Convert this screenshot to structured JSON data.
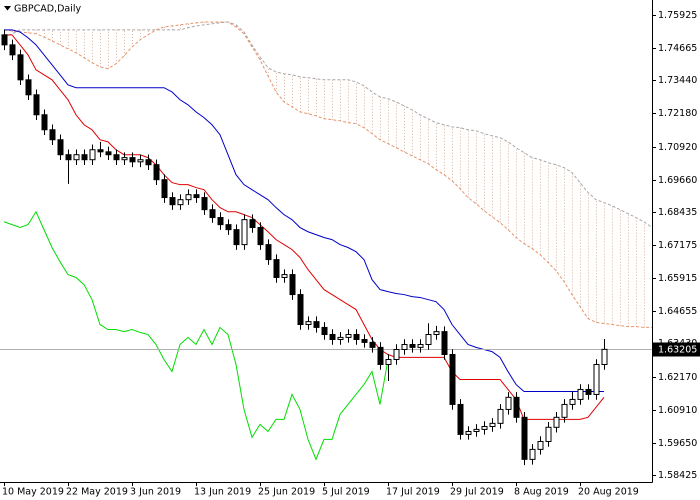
{
  "chart_data": {
    "type": "candlestick",
    "title": "GBPCAD,Daily",
    "categories": [
      "10 May 2019",
      null,
      null,
      null,
      null,
      null,
      null,
      null,
      "22 May 2019",
      null,
      null,
      null,
      null,
      null,
      null,
      null,
      "3 Jun 2019",
      null,
      null,
      null,
      null,
      null,
      null,
      null,
      "13 Jun 2019",
      null,
      null,
      null,
      null,
      null,
      null,
      null,
      "25 Jun 2019",
      null,
      null,
      null,
      null,
      null,
      null,
      null,
      "5 Jul 2019",
      null,
      null,
      null,
      null,
      null,
      null,
      null,
      "17 Jul 2019",
      null,
      null,
      null,
      null,
      null,
      null,
      null,
      "29 Jul 2019",
      null,
      null,
      null,
      null,
      null,
      null,
      null,
      "8 Aug 2019",
      null,
      null,
      null,
      null,
      null,
      null,
      null,
      "20 Aug 2019",
      null,
      null,
      null,
      null,
      null,
      null,
      null,
      null,
      null
    ],
    "open": [
      1.7517,
      1.7479,
      1.7441,
      1.7346,
      1.7289,
      1.7213,
      1.7156,
      1.7118,
      1.7061,
      1.7042,
      1.7061,
      1.7042,
      1.708,
      1.7072,
      1.7061,
      1.7042,
      1.705,
      1.7034,
      1.7042,
      1.7023,
      1.6966,
      1.6898,
      1.6871,
      1.689,
      1.6909,
      1.6898,
      1.6852,
      1.6822,
      1.6795,
      1.6776,
      1.6719,
      1.6814,
      1.6784,
      1.6719,
      1.6662,
      1.6594,
      1.6605,
      1.6529,
      1.6415,
      1.6426,
      1.6404,
      1.6377,
      1.6358,
      1.6366,
      1.6377,
      1.6358,
      1.6347,
      1.6328,
      1.6263,
      1.6282,
      1.632,
      1.6339,
      1.6328,
      1.6339,
      1.6377,
      1.6388,
      1.6301,
      1.6111,
      1.5997,
      1.6008,
      1.6016,
      1.6027,
      1.6039,
      1.6092,
      1.6138,
      1.6062,
      1.5902,
      1.594,
      1.597,
      1.6024,
      1.6062,
      1.6111,
      1.613,
      1.6168,
      1.6149,
      1.6263,
      null,
      null,
      null,
      null,
      null,
      null
    ],
    "high": [
      1.7537,
      1.7499,
      1.7461,
      1.7366,
      1.7309,
      1.7233,
      1.7176,
      1.7138,
      1.7081,
      1.7081,
      1.7081,
      1.71,
      1.711,
      1.7092,
      1.7081,
      1.707,
      1.707,
      1.7062,
      1.7062,
      1.7043,
      1.6986,
      1.6918,
      1.691,
      1.6929,
      1.6929,
      1.6918,
      1.6872,
      1.6842,
      1.6815,
      1.6796,
      1.6834,
      1.6834,
      1.6804,
      1.6739,
      1.6682,
      1.6625,
      1.6625,
      1.6549,
      1.6446,
      1.6446,
      1.6424,
      1.6397,
      1.6386,
      1.6397,
      1.6397,
      1.6378,
      1.6367,
      1.6348,
      1.6302,
      1.634,
      1.6359,
      1.6359,
      1.6359,
      1.642,
      1.641,
      1.6408,
      1.6321,
      1.6131,
      1.6028,
      1.6036,
      1.6047,
      1.6059,
      1.6112,
      1.6158,
      1.6158,
      1.6082,
      1.596,
      1.599,
      1.6044,
      1.6082,
      1.6131,
      1.616,
      1.6188,
      1.6188,
      1.6283,
      1.636,
      null,
      null,
      null,
      null,
      null,
      null
    ],
    "low": [
      1.7459,
      1.7421,
      1.7326,
      1.7269,
      1.7193,
      1.7136,
      1.7098,
      1.7041,
      1.695,
      1.7022,
      1.7022,
      1.7022,
      1.7052,
      1.7041,
      1.7022,
      1.7022,
      1.7014,
      1.7014,
      1.7003,
      1.6946,
      1.6878,
      1.6851,
      1.6851,
      1.687,
      1.6878,
      1.6832,
      1.6802,
      1.6775,
      1.6756,
      1.6699,
      1.6699,
      1.6764,
      1.6699,
      1.6642,
      1.6574,
      1.6574,
      1.6509,
      1.6395,
      1.6395,
      1.6384,
      1.6357,
      1.6338,
      1.6338,
      1.6346,
      1.6338,
      1.6327,
      1.6308,
      1.6243,
      1.62,
      1.6262,
      1.63,
      1.6308,
      1.6308,
      1.6319,
      1.6357,
      1.6281,
      1.6091,
      1.5977,
      1.5977,
      1.5988,
      1.5996,
      1.6007,
      1.6019,
      1.6072,
      1.6042,
      1.588,
      1.5882,
      1.592,
      1.595,
      1.6004,
      1.6042,
      1.6091,
      1.611,
      1.6129,
      1.6129,
      1.6243,
      null,
      null,
      null,
      null,
      null,
      null
    ],
    "close": [
      1.7479,
      1.7441,
      1.7346,
      1.7289,
      1.7213,
      1.7156,
      1.7118,
      1.7061,
      1.7042,
      1.7061,
      1.7042,
      1.708,
      1.7072,
      1.7061,
      1.7042,
      1.705,
      1.7034,
      1.7042,
      1.7023,
      1.6966,
      1.6898,
      1.6871,
      1.689,
      1.6909,
      1.6898,
      1.6852,
      1.6822,
      1.6795,
      1.6776,
      1.6719,
      1.6814,
      1.6784,
      1.6719,
      1.6662,
      1.6594,
      1.6605,
      1.6529,
      1.6415,
      1.6426,
      1.6404,
      1.6377,
      1.6358,
      1.6366,
      1.6377,
      1.6358,
      1.6347,
      1.6328,
      1.6263,
      1.6282,
      1.632,
      1.6339,
      1.6328,
      1.6339,
      1.6377,
      1.6388,
      1.6301,
      1.6111,
      1.5997,
      1.6008,
      1.6016,
      1.6027,
      1.6039,
      1.6092,
      1.6138,
      1.6062,
      1.5902,
      1.594,
      1.597,
      1.6024,
      1.6062,
      1.6111,
      1.613,
      1.6168,
      1.6149,
      1.6263,
      1.63205,
      null,
      null,
      null,
      null,
      null,
      null
    ],
    "candle_colors": {
      "up": "#ffffff",
      "down": "#000000",
      "outline": "#000000"
    },
    "cloud_color": "#d9b09a",
    "span_a": {
      "color": "#e8956a",
      "dashed": true,
      "values": [
        1.7536,
        1.7532,
        1.7528,
        1.7525,
        1.7521,
        1.7509,
        1.7494,
        1.7479,
        1.7464,
        1.7449,
        1.743,
        1.7411,
        1.7395,
        1.7388,
        1.7407,
        1.7437,
        1.7471,
        1.7498,
        1.7517,
        1.7536,
        1.7547,
        1.7551,
        1.7555,
        1.7559,
        1.7563,
        1.7566,
        1.7566,
        1.7566,
        1.7566,
        1.7547,
        1.7521,
        1.7471,
        1.7422,
        1.7361,
        1.73,
        1.7262,
        1.7243,
        1.7224,
        1.7217,
        1.7209,
        1.7198,
        1.7194,
        1.719,
        1.7183,
        1.7179,
        1.7164,
        1.7141,
        1.7118,
        1.7103,
        1.7088,
        1.7072,
        1.7057,
        1.7042,
        1.7027,
        1.7004,
        1.6985,
        1.6962,
        1.6932,
        1.6898,
        1.6875,
        1.6848,
        1.6825,
        1.6803,
        1.6776,
        1.6746,
        1.6723,
        1.6704,
        1.6681,
        1.6651,
        1.662,
        1.6578,
        1.6529,
        1.6483,
        1.6438,
        1.6423,
        1.6419,
        1.6415,
        1.6411,
        1.6407,
        1.6407,
        1.6404,
        1.6404
      ]
    },
    "span_b": {
      "color": "#a8a8a8",
      "dashed": true,
      "values": [
        1.7506,
        1.7521,
        1.7536,
        1.7536,
        1.7536,
        1.7536,
        1.7536,
        1.7536,
        1.7536,
        1.7536,
        1.7536,
        1.7536,
        1.7536,
        1.7536,
        1.7536,
        1.7536,
        1.7536,
        1.7536,
        1.7536,
        1.7536,
        1.7536,
        1.7536,
        1.7536,
        1.7544,
        1.7551,
        1.7555,
        1.7559,
        1.7563,
        1.7566,
        1.7555,
        1.7528,
        1.7479,
        1.7433,
        1.7392,
        1.7376,
        1.7369,
        1.7365,
        1.7357,
        1.7354,
        1.735,
        1.7346,
        1.7346,
        1.7346,
        1.7346,
        1.7338,
        1.7323,
        1.73,
        1.7281,
        1.7274,
        1.7262,
        1.7247,
        1.7232,
        1.7213,
        1.7198,
        1.7183,
        1.7175,
        1.7167,
        1.7164,
        1.7156,
        1.7152,
        1.7141,
        1.7133,
        1.7126,
        1.711,
        1.7088,
        1.7069,
        1.705,
        1.7042,
        1.7031,
        1.7023,
        1.7012,
        1.6993,
        1.6955,
        1.6917,
        1.689,
        1.6879,
        1.6867,
        1.6852,
        1.6837,
        1.6822,
        1.6806,
        1.6784
      ]
    },
    "chikou": {
      "color": "#00dd00",
      "dashed": false,
      "values": [
        1.6806,
        1.6795,
        1.6784,
        1.6795,
        1.6844,
        1.6776,
        1.6708,
        1.6654,
        1.6605,
        1.6594,
        1.6567,
        1.651,
        1.6415,
        1.6396,
        1.6396,
        1.6388,
        1.6396,
        1.6385,
        1.6377,
        1.6339,
        1.6282,
        1.6236,
        1.6339,
        1.6366,
        1.6339,
        1.6396,
        1.6339,
        1.6404,
        1.6377,
        1.6263,
        1.6092,
        1.5986,
        1.6035,
        1.6008,
        1.6054,
        1.6054,
        1.6149,
        1.6092,
        1.5978,
        1.5902,
        1.5978,
        1.5978,
        1.6073,
        1.6111,
        1.6149,
        1.6187,
        1.6236,
        1.6111,
        1.6282,
        null,
        null,
        null,
        null,
        null,
        null,
        null,
        null,
        null,
        null,
        null,
        null,
        null,
        null,
        null,
        null,
        null,
        null,
        null,
        null,
        null,
        null,
        null,
        null,
        null,
        null,
        null,
        null,
        null,
        null,
        null,
        null,
        null
      ]
    },
    "kijun": {
      "color": "#0000c8",
      "dashed": false,
      "values": [
        1.7536,
        1.7536,
        1.7528,
        1.7506,
        1.7479,
        1.7441,
        1.7403,
        1.7365,
        1.7327,
        1.7316,
        1.7316,
        1.7316,
        1.7316,
        1.7316,
        1.7316,
        1.7316,
        1.7316,
        1.7316,
        1.7316,
        1.7316,
        1.7316,
        1.73,
        1.727,
        1.7251,
        1.7224,
        1.7202,
        1.7175,
        1.7137,
        1.7061,
        1.6985,
        1.6947,
        1.6928,
        1.6909,
        1.689,
        1.686,
        1.6833,
        1.6814,
        1.6784,
        1.6768,
        1.6757,
        1.6746,
        1.6738,
        1.6719,
        1.6708,
        1.6692,
        1.6662,
        1.6586,
        1.6548,
        1.654,
        1.6533,
        1.6529,
        1.6521,
        1.6518,
        1.651,
        1.6502,
        1.6472,
        1.6415,
        1.6377,
        1.6339,
        1.6328,
        1.632,
        1.6312,
        1.629,
        1.6236,
        1.6187,
        1.616,
        1.616,
        1.616,
        1.616,
        1.616,
        1.616,
        1.616,
        1.616,
        1.616,
        1.616,
        1.616,
        null,
        null,
        null,
        null,
        null,
        null
      ]
    },
    "tenkan": {
      "color": "#e00000",
      "dashed": false,
      "values": [
        1.7517,
        1.7517,
        1.7479,
        1.7441,
        1.7384,
        1.7365,
        1.7346,
        1.7308,
        1.727,
        1.7213,
        1.7175,
        1.7156,
        1.7118,
        1.711,
        1.708,
        1.7061,
        1.7061,
        1.7061,
        1.705,
        1.7023,
        1.6985,
        1.6955,
        1.6947,
        1.6947,
        1.6936,
        1.6928,
        1.689,
        1.686,
        1.6844,
        1.6844,
        1.6833,
        1.6822,
        1.6795,
        1.6768,
        1.6738,
        1.6719,
        1.67,
        1.667,
        1.6624,
        1.6586,
        1.6548,
        1.6529,
        1.651,
        1.6491,
        1.6472,
        1.6415,
        1.6358,
        1.632,
        1.6301,
        1.629,
        1.629,
        1.629,
        1.629,
        1.629,
        1.629,
        1.629,
        1.6236,
        1.6206,
        1.6206,
        1.6206,
        1.6206,
        1.6206,
        1.6206,
        1.6168,
        1.613,
        1.6054,
        1.6054,
        1.6054,
        1.6054,
        1.6054,
        1.6054,
        1.6054,
        1.6054,
        1.6062,
        1.61,
        1.6138,
        null,
        null,
        null,
        null,
        null,
        null
      ]
    },
    "current_price": 1.63205,
    "ylim": [
      1.58159,
      1.76496
    ],
    "yticks": [
      1.75925,
      1.74665,
      {
        "value": 1.7344,
        "label": "1.73440"
      },
      {
        "value": 1.7218,
        "label": "1.72180"
      },
      {
        "value": 1.7092,
        "label": "1.70920"
      },
      {
        "value": 1.6966,
        "label": "1.69660"
      },
      1.68435,
      1.67175,
      1.65915,
      1.64655,
      {
        "value": 1.6343,
        "label": "1.63430"
      },
      {
        "value": 1.6217,
        "label": "1.62170"
      },
      {
        "value": 1.6091,
        "label": "1.60910"
      },
      {
        "value": 1.5965,
        "label": "1.59650"
      },
      1.58425
    ],
    "grid": false
  }
}
